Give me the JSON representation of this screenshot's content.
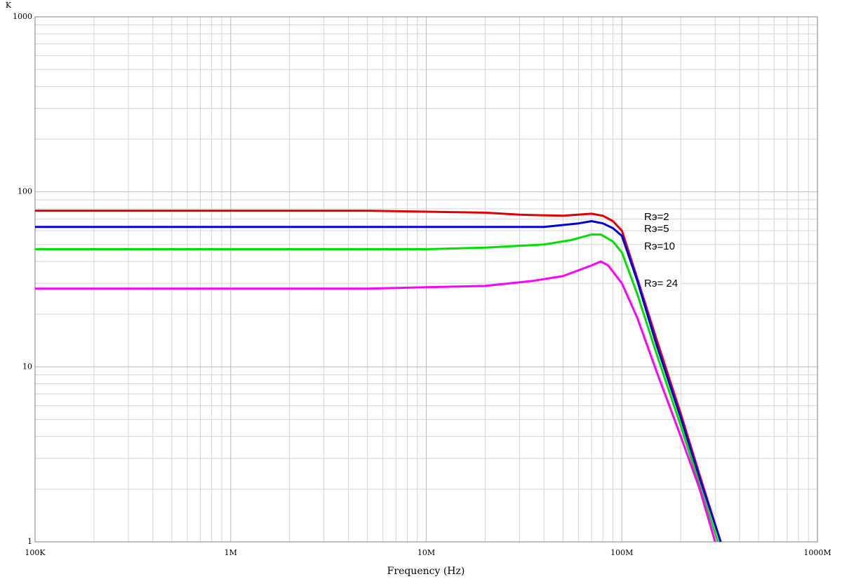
{
  "chart_data": {
    "type": "line",
    "x_label": "Frequency (Hz)",
    "y_label": "K",
    "log_x": true,
    "log_y": true,
    "grid": true,
    "xlim": [
      100000,
      1000000000
    ],
    "ylim": [
      1,
      1000
    ],
    "xticks": [
      {
        "value": 100000,
        "label": "100K"
      },
      {
        "value": 1000000,
        "label": "1M"
      },
      {
        "value": 10000000,
        "label": "10M"
      },
      {
        "value": 100000000,
        "label": "100M"
      },
      {
        "value": 1000000000,
        "label": "1000M"
      }
    ],
    "yticks": [
      1,
      10,
      100,
      1000
    ],
    "series": [
      {
        "name": "Rэ=2",
        "color": "#e00000",
        "x": [
          100000,
          1000000,
          5000000,
          10000000,
          20000000,
          30000000,
          50000000,
          70000000,
          80000000,
          90000000,
          100000000,
          120000000,
          150000000,
          200000000,
          250000000,
          320000000
        ],
        "values": [
          78,
          78,
          78,
          77,
          76,
          74,
          73,
          75,
          73,
          68,
          60,
          32,
          14.5,
          5.4,
          2.4,
          1
        ]
      },
      {
        "name": "Rэ=5",
        "color": "#0000e0",
        "x": [
          100000,
          1000000,
          10000000,
          40000000,
          60000000,
          70000000,
          80000000,
          90000000,
          100000000,
          120000000,
          150000000,
          200000000,
          250000000,
          320000000
        ],
        "values": [
          63,
          63,
          63,
          63,
          66,
          68,
          66,
          62,
          56,
          31,
          13.5,
          5.1,
          2.3,
          1
        ]
      },
      {
        "name": "Rэ=10",
        "color": "#00e000",
        "x": [
          100000,
          1000000,
          10000000,
          20000000,
          40000000,
          55000000,
          70000000,
          78000000,
          90000000,
          100000000,
          120000000,
          150000000,
          200000000,
          250000000,
          310000000
        ],
        "values": [
          47,
          47,
          47,
          48,
          50,
          53,
          57,
          57,
          52,
          45,
          26,
          12,
          4.6,
          2.1,
          1
        ]
      },
      {
        "name": "Rэ= 24",
        "color": "#ff00ff",
        "x": [
          100000,
          1000000,
          5000000,
          10000000,
          20000000,
          35000000,
          50000000,
          70000000,
          78000000,
          85000000,
          100000000,
          120000000,
          150000000,
          200000000,
          250000000,
          300000000
        ],
        "values": [
          28,
          28,
          28,
          28.5,
          29,
          31,
          33,
          38,
          40,
          38,
          30,
          19,
          9.5,
          4,
          2,
          1
        ]
      }
    ]
  }
}
